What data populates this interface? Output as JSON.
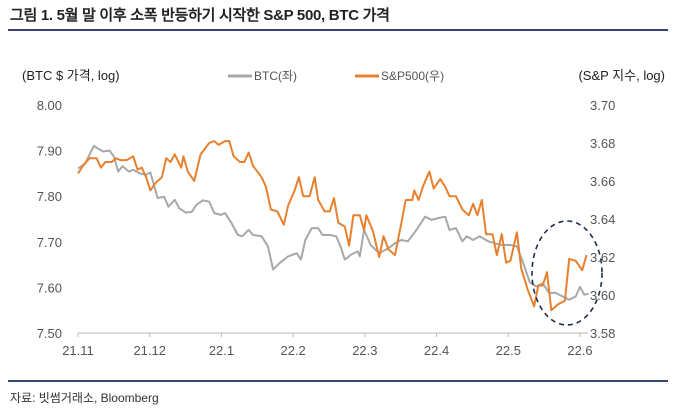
{
  "title": "그림 1. 5월 말 이후 소폭 반등하기 시작한 S&P 500, BTC 가격",
  "source": "자료: 빗썸거래소, Bloomberg",
  "chart_data": {
    "type": "line",
    "title": "그림 1. 5월 말 이후 소폭 반등하기 시작한 S&P 500, BTC 가격",
    "ylabel_left": "(BTC $ 가격,  log)",
    "ylabel_right": "(S&P 지수, log)",
    "x_ticks": [
      "21.11",
      "21.12",
      "22.1",
      "22.2",
      "22.3",
      "22.4",
      "22.5",
      "22.6"
    ],
    "xlim": [
      0,
      7
    ],
    "ylim_left": [
      7.5,
      8.0
    ],
    "ylim_right": [
      3.58,
      3.7
    ],
    "left_ticks": [
      "8.00",
      "7.90",
      "7.80",
      "7.70",
      "7.60",
      "7.50"
    ],
    "right_ticks": [
      "3.70",
      "3.68",
      "3.66",
      "3.64",
      "3.62",
      "3.60",
      "3.58"
    ],
    "legend_position": "top-center",
    "annotation": "dashed ellipse highlighting late May – June rebound",
    "colors": {
      "btc": "#a8a8a8",
      "sp500": "#e8812f",
      "ellipse": "#1f2d4f",
      "rule": "#3a4672"
    },
    "series": [
      {
        "name": "BTC(좌)",
        "axis": "left",
        "x": [
          0,
          0.1,
          0.22,
          0.35,
          0.44,
          0.5,
          0.56,
          0.62,
          0.71,
          0.77,
          0.86,
          0.95,
          1.01,
          1.11,
          1.2,
          1.26,
          1.35,
          1.41,
          1.5,
          1.59,
          1.65,
          1.74,
          1.83,
          1.9,
          1.99,
          2.05,
          2.14,
          2.23,
          2.29,
          2.38,
          2.44,
          2.56,
          2.65,
          2.72,
          2.81,
          2.93,
          3.05,
          3.11,
          3.17,
          3.26,
          3.35,
          3.41,
          3.51,
          3.6,
          3.66,
          3.72,
          3.81,
          3.9,
          3.93,
          3.99,
          4.08,
          4.2,
          4.33,
          4.42,
          4.51,
          4.6,
          4.72,
          4.84,
          4.93,
          5.02,
          5.12,
          5.18,
          5.27,
          5.36,
          5.42,
          5.51,
          5.6,
          5.72,
          5.81,
          5.91,
          6.03,
          6.12,
          6.21,
          6.3,
          6.39,
          6.48,
          6.57,
          6.66,
          6.76,
          6.85,
          6.94,
          7.0,
          7.06,
          7.12
        ],
        "values": [
          7.861,
          7.872,
          7.91,
          7.898,
          7.9,
          7.887,
          7.854,
          7.866,
          7.854,
          7.858,
          7.85,
          7.847,
          7.852,
          7.796,
          7.799,
          7.777,
          7.792,
          7.774,
          7.764,
          7.766,
          7.781,
          7.791,
          7.788,
          7.763,
          7.759,
          7.763,
          7.741,
          7.715,
          7.712,
          7.726,
          7.715,
          7.712,
          7.69,
          7.639,
          7.653,
          7.668,
          7.675,
          7.661,
          7.704,
          7.73,
          7.73,
          7.715,
          7.715,
          7.712,
          7.69,
          7.661,
          7.672,
          7.679,
          7.668,
          7.726,
          7.693,
          7.675,
          7.686,
          7.697,
          7.704,
          7.701,
          7.726,
          7.755,
          7.748,
          7.752,
          7.755,
          7.726,
          7.73,
          7.701,
          7.712,
          7.704,
          7.712,
          7.701,
          7.697,
          7.693,
          7.693,
          7.69,
          7.653,
          7.611,
          7.602,
          7.609,
          7.588,
          7.588,
          7.58,
          7.573,
          7.58,
          7.601,
          7.584,
          7.586
        ]
      },
      {
        "name": "S&P500(우)",
        "axis": "right",
        "x": [
          0,
          0.07,
          0.16,
          0.26,
          0.32,
          0.38,
          0.47,
          0.53,
          0.59,
          0.68,
          0.77,
          0.83,
          0.89,
          0.95,
          1.01,
          1.08,
          1.17,
          1.23,
          1.29,
          1.35,
          1.44,
          1.47,
          1.53,
          1.62,
          1.71,
          1.83,
          1.9,
          1.96,
          2.05,
          2.11,
          2.17,
          2.26,
          2.32,
          2.38,
          2.44,
          2.56,
          2.62,
          2.69,
          2.78,
          2.87,
          2.93,
          3.02,
          3.08,
          3.14,
          3.23,
          3.3,
          3.35,
          3.44,
          3.51,
          3.57,
          3.63,
          3.72,
          3.78,
          3.84,
          3.93,
          3.99,
          4.02,
          4.11,
          4.2,
          4.26,
          4.33,
          4.42,
          4.51,
          4.57,
          4.66,
          4.69,
          4.75,
          4.81,
          4.9,
          4.96,
          5.05,
          5.12,
          5.18,
          5.27,
          5.36,
          5.45,
          5.51,
          5.57,
          5.63,
          5.69,
          5.78,
          5.84,
          5.91,
          5.97,
          6.03,
          6.12,
          6.18,
          6.27,
          6.36,
          6.42,
          6.48,
          6.54,
          6.6,
          6.69,
          6.79,
          6.85,
          6.94,
          7.03,
          7.09
        ],
        "values": [
          3.664,
          3.668,
          3.672,
          3.672,
          3.667,
          3.67,
          3.67,
          3.672,
          3.671,
          3.671,
          3.673,
          3.666,
          3.667,
          3.662,
          3.655,
          3.659,
          3.662,
          3.672,
          3.67,
          3.674,
          3.667,
          3.673,
          3.665,
          3.66,
          3.674,
          3.68,
          3.681,
          3.679,
          3.681,
          3.681,
          3.673,
          3.67,
          3.67,
          3.675,
          3.668,
          3.662,
          3.657,
          3.645,
          3.644,
          3.637,
          3.647,
          3.655,
          3.662,
          3.652,
          3.652,
          3.662,
          3.65,
          3.644,
          3.644,
          3.651,
          3.638,
          3.636,
          3.626,
          3.642,
          3.642,
          3.634,
          3.642,
          3.634,
          3.62,
          3.631,
          3.624,
          3.621,
          3.638,
          3.65,
          3.65,
          3.655,
          3.65,
          3.657,
          3.665,
          3.656,
          3.661,
          3.657,
          3.652,
          3.652,
          3.645,
          3.642,
          3.648,
          3.642,
          3.65,
          3.632,
          3.632,
          3.621,
          3.632,
          3.617,
          3.618,
          3.633,
          3.614,
          3.603,
          3.594,
          3.605,
          3.605,
          3.612,
          3.592,
          3.595,
          3.597,
          3.619,
          3.618,
          3.613,
          3.621
        ]
      }
    ]
  }
}
